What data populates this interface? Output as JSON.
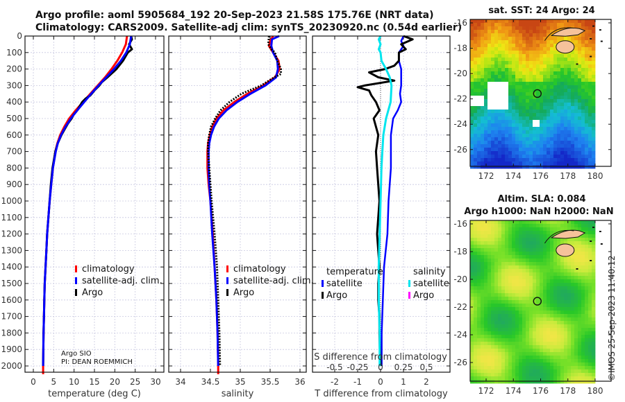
{
  "header": {
    "title_line1": "Argo profile: aoml 5905684_192 20-Sep-2023 21.58S 175.76E (NRT data)",
    "title_line2": "Climatology: CARS2009. Satellite-adj clim: synTS_20230920.nc (0.54d earlier)"
  },
  "colors": {
    "climatology": "#ff0000",
    "satellite_adj": "#0000ff",
    "argo": "#000000",
    "sal_satellite": "#00e5ee",
    "sal_argo": "#ff00ff",
    "land": "#f5c29a"
  },
  "credit": "©IMOS 25-Sep-2023 11:40:12",
  "chart_data": [
    {
      "type": "line",
      "name": "temperature-profile",
      "xlabel": "temperature (deg C)",
      "ylabel": "",
      "xlim": [
        -1.5,
        31.5
      ],
      "ylim": [
        2050,
        0
      ],
      "xticks": [
        0,
        5,
        10,
        15,
        20,
        25,
        30
      ],
      "yticks": [
        0,
        100,
        200,
        300,
        400,
        500,
        600,
        700,
        800,
        900,
        1000,
        1100,
        1200,
        1300,
        1400,
        1500,
        1600,
        1700,
        1800,
        1900,
        2000
      ],
      "grid": true,
      "legend": {
        "position": "lower-right",
        "entries": [
          "climatology",
          "satellite-adj. clim.",
          "Argo"
        ]
      },
      "annotation": [
        "Argo SIO",
        "PI: DEAN ROEMMICH"
      ],
      "series": [
        {
          "name": "climatology",
          "depth": [
            0,
            50,
            100,
            150,
            200,
            250,
            300,
            350,
            400,
            450,
            500,
            550,
            600,
            650,
            700,
            800,
            900,
            1000,
            1100,
            1200,
            1300,
            1400,
            1500,
            1600,
            1700,
            1800,
            1900,
            2000,
            2050
          ],
          "values": [
            23.0,
            22.7,
            21.8,
            20.6,
            19.2,
            17.6,
            15.8,
            14.0,
            12.2,
            10.4,
            8.8,
            7.6,
            6.6,
            5.9,
            5.4,
            4.8,
            4.4,
            4.0,
            3.7,
            3.4,
            3.2,
            3.0,
            2.8,
            2.7,
            2.6,
            2.5,
            2.45,
            2.4,
            2.4
          ]
        },
        {
          "name": "satellite-adj. clim.",
          "depth": [
            0,
            50,
            100,
            150,
            200,
            250,
            300,
            350,
            400,
            450,
            500,
            550,
            600,
            650,
            700,
            800,
            900,
            1000,
            1100,
            1200,
            1300,
            1400,
            1500,
            1600,
            1700,
            1800,
            1900,
            2000
          ],
          "values": [
            24.0,
            23.7,
            22.8,
            21.5,
            19.8,
            17.9,
            16.0,
            14.2,
            12.5,
            10.8,
            9.2,
            7.9,
            6.8,
            6.0,
            5.5,
            4.8,
            4.4,
            4.0,
            3.7,
            3.4,
            3.2,
            3.0,
            2.8,
            2.7,
            2.6,
            2.5,
            2.45,
            2.4
          ]
        },
        {
          "name": "Argo",
          "depth": [
            0,
            20,
            50,
            80,
            100,
            150,
            200,
            250,
            280,
            300,
            330,
            360,
            380,
            400,
            420,
            450,
            480,
            500,
            530,
            560,
            600,
            650,
            700,
            800,
            900,
            1000,
            1100,
            1200,
            1300,
            1400,
            1500,
            1600,
            1700,
            1800,
            1900,
            2000
          ],
          "values": [
            24.0,
            24.2,
            23.5,
            24.2,
            23.2,
            22.0,
            20.4,
            18.2,
            16.8,
            16.2,
            15.0,
            14.0,
            12.8,
            12.0,
            11.5,
            10.8,
            9.8,
            9.4,
            8.5,
            7.8,
            6.9,
            6.0,
            5.4,
            4.7,
            4.3,
            4.0,
            3.7,
            3.4,
            3.2,
            3.0,
            2.8,
            2.7,
            2.6,
            2.5,
            2.45,
            2.4
          ]
        }
      ]
    },
    {
      "type": "line",
      "name": "salinity-profile",
      "xlabel": "salinity",
      "xlim": [
        33.8,
        36.1
      ],
      "ylim": [
        2050,
        0
      ],
      "xticks": [
        34,
        34.5,
        35,
        35.5,
        36
      ],
      "xtick_labels": [
        "34",
        "34.5",
        "35",
        "35.5",
        "36"
      ],
      "grid": true,
      "legend": {
        "position": "lower-right",
        "entries": [
          "climatology",
          "satellite-adj. clim.",
          "Argo"
        ]
      },
      "series": [
        {
          "name": "climatology",
          "depth": [
            0,
            30,
            60,
            100,
            150,
            200,
            250,
            300,
            350,
            400,
            450,
            500,
            550,
            600,
            650,
            700,
            750,
            800,
            900,
            1000,
            1200,
            1400,
            1600,
            1800,
            2000,
            2050
          ],
          "values": [
            35.55,
            35.5,
            35.48,
            35.55,
            35.64,
            35.66,
            35.58,
            35.38,
            35.12,
            34.9,
            34.72,
            34.6,
            34.53,
            34.49,
            34.46,
            34.45,
            34.45,
            34.45,
            34.47,
            34.5,
            34.54,
            34.57,
            34.6,
            34.62,
            34.63,
            34.63
          ]
        },
        {
          "name": "satellite-adj. clim.",
          "depth": [
            0,
            20,
            60,
            100,
            150,
            200,
            250,
            300,
            350,
            400,
            450,
            500,
            550,
            600,
            650,
            700,
            750,
            800,
            900,
            1000,
            1200,
            1400,
            1600,
            1800,
            2000
          ],
          "values": [
            35.65,
            35.53,
            35.52,
            35.55,
            35.62,
            35.63,
            35.6,
            35.42,
            35.17,
            34.95,
            34.77,
            34.64,
            34.56,
            34.51,
            34.48,
            34.47,
            34.47,
            34.47,
            34.48,
            34.5,
            34.53,
            34.57,
            34.6,
            34.62,
            34.63
          ]
        },
        {
          "name": "Argo",
          "depth": [
            0,
            50,
            80,
            100,
            150,
            200,
            230,
            250,
            300,
            350,
            400,
            450,
            500,
            550,
            600,
            650,
            700,
            750,
            800,
            900,
            1000,
            1200,
            1400,
            1600,
            1800,
            2000
          ],
          "values": [
            35.48,
            35.47,
            35.52,
            35.58,
            35.62,
            35.68,
            35.68,
            35.57,
            35.35,
            35.02,
            34.82,
            34.67,
            34.58,
            34.51,
            34.48,
            34.46,
            34.46,
            34.47,
            34.48,
            34.5,
            34.52,
            34.57,
            34.61,
            34.63,
            34.65,
            34.66
          ]
        }
      ]
    },
    {
      "type": "line",
      "name": "difference-profile",
      "xlabel": "T difference from climatology",
      "xlabel_top": "S difference from climatology",
      "xlim": [
        -3,
        3
      ],
      "ylim": [
        2050,
        0
      ],
      "xticks": [
        -2,
        -1,
        0,
        1,
        2
      ],
      "s_xticks": [
        -0.5,
        -0.25,
        0,
        0.25,
        0.5
      ],
      "s_xtick_labels": [
        "-0.5",
        "-0.25",
        "0",
        "0.25",
        "0.5"
      ],
      "grid": true,
      "legend": {
        "position": "lower",
        "groups": [
          {
            "title": "temperature",
            "entries": [
              "satellite",
              "Argo"
            ]
          },
          {
            "title": "salinity",
            "entries": [
              "satellite",
              "Argo"
            ]
          }
        ]
      },
      "series": [
        {
          "name": "temperature satellite",
          "depth": [
            0,
            30,
            60,
            100,
            150,
            200,
            250,
            300,
            350,
            400,
            450,
            500,
            550,
            600,
            700,
            800,
            900,
            1000,
            1200,
            1400,
            1600,
            1800,
            2000
          ],
          "values": [
            1.0,
            0.9,
            1.0,
            0.8,
            0.8,
            0.9,
            0.9,
            0.9,
            0.85,
            0.9,
            0.75,
            0.55,
            0.5,
            0.45,
            0.45,
            0.45,
            0.4,
            0.35,
            0.3,
            0.15,
            0.1,
            0.05,
            0.05
          ]
        },
        {
          "name": "temperature Argo",
          "depth": [
            0,
            20,
            50,
            80,
            100,
            150,
            180,
            200,
            220,
            250,
            270,
            300,
            310,
            330,
            360,
            400,
            450,
            500,
            550,
            600,
            700,
            800,
            900,
            1000,
            1100,
            1200,
            1300,
            1400,
            1500,
            1600,
            1700,
            1800,
            1900,
            2000
          ],
          "values": [
            1.0,
            1.4,
            0.9,
            1.1,
            0.8,
            0.8,
            0.6,
            0.2,
            -0.5,
            -0.1,
            0.6,
            -0.7,
            -1.0,
            -0.5,
            -0.4,
            -0.2,
            -0.05,
            -0.3,
            -0.2,
            -0.1,
            -0.2,
            -0.15,
            -0.1,
            -0.05,
            -0.1,
            -0.15,
            -0.1,
            -0.05,
            -0.1,
            -0.1,
            -0.05,
            -0.05,
            -0.03,
            0.0
          ]
        },
        {
          "name": "salinity satellite",
          "depth": [
            0,
            20,
            50,
            80,
            100,
            150,
            200,
            250,
            300,
            400,
            500,
            600,
            700,
            800,
            1000,
            1200,
            1400,
            1600,
            1800,
            2000
          ],
          "values": [
            0.0,
            -0.02,
            0.0,
            -0.02,
            0.0,
            0.01,
            0.06,
            0.1,
            0.12,
            0.11,
            0.06,
            0.03,
            0.02,
            0.01,
            0.0,
            -0.01,
            -0.02,
            -0.02,
            -0.01,
            -0.01
          ]
        },
        {
          "name": "salinity Argo",
          "depth": [],
          "values": []
        }
      ]
    },
    {
      "type": "heatmap",
      "name": "sst-map",
      "title": "sat. SST: 24 Argo: 24",
      "xlim": [
        170.5,
        181.3
      ],
      "ylim": [
        -27.5,
        -15.6
      ],
      "xticks": [
        172,
        174,
        176,
        178,
        180
      ],
      "yticks": [
        -16,
        -18,
        -20,
        -22,
        -24,
        -26
      ],
      "marker": {
        "lon": 175.76,
        "lat": -21.58
      }
    },
    {
      "type": "heatmap",
      "name": "sla-map",
      "title_line1": "Altim. SLA: 0.084",
      "title_line2": "Argo h1000: NaN h2000: NaN",
      "xlim": [
        170.5,
        181.3
      ],
      "ylim": [
        -27.5,
        -15.6
      ],
      "xticks": [
        172,
        174,
        176,
        178,
        180
      ],
      "yticks": [
        -16,
        -18,
        -20,
        -22,
        -24,
        -26
      ],
      "marker": {
        "lon": 175.76,
        "lat": -21.58
      }
    }
  ]
}
